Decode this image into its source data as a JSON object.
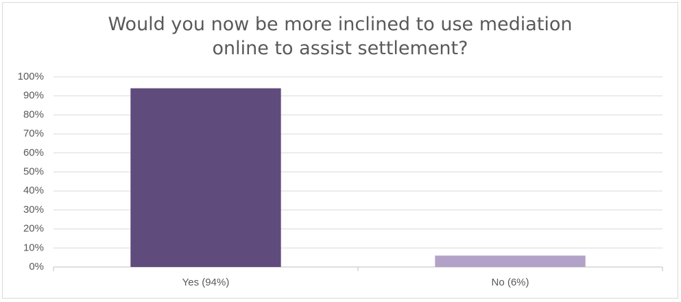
{
  "chart_data": {
    "type": "bar",
    "title": "Would you now be more inclined to use mediation online to assist settlement?",
    "categories": [
      "Yes (94%)",
      "No (6%)"
    ],
    "values": [
      94,
      6
    ],
    "colors": [
      "#5f4b7c",
      "#b3a2c7"
    ],
    "ylim": [
      0,
      100
    ],
    "yticks": [
      {
        "value": 0,
        "label": "0%"
      },
      {
        "value": 10,
        "label": "10%"
      },
      {
        "value": 20,
        "label": "20%"
      },
      {
        "value": 30,
        "label": "30%"
      },
      {
        "value": 40,
        "label": "40%"
      },
      {
        "value": 50,
        "label": "50%"
      },
      {
        "value": 60,
        "label": "60%"
      },
      {
        "value": 70,
        "label": "70%"
      },
      {
        "value": 80,
        "label": "80%"
      },
      {
        "value": 90,
        "label": "90%"
      },
      {
        "value": 100,
        "label": "100%"
      }
    ],
    "grid": true
  }
}
